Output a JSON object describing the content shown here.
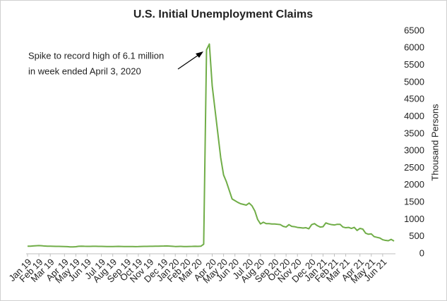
{
  "chart_data": {
    "type": "line",
    "title": "U.S. Initial Unemployment Claims",
    "y_axis_label": "Thousand Persons",
    "annotation": [
      "Spike to record high of 6.1 million",
      "in week ended April 3, 2020"
    ],
    "categories": [
      "Jan 19",
      null,
      null,
      null,
      "Feb 19",
      null,
      null,
      null,
      "Mar 19",
      null,
      null,
      null,
      null,
      "Apr 19",
      null,
      null,
      null,
      "May 19",
      null,
      null,
      null,
      "Jun 19",
      null,
      null,
      null,
      null,
      "Jul 19",
      null,
      null,
      null,
      "Aug 19",
      null,
      null,
      null,
      null,
      "Sep 19",
      null,
      null,
      null,
      "Oct 19",
      null,
      null,
      null,
      "Nov 19",
      null,
      null,
      null,
      null,
      "Dec 19",
      null,
      null,
      null,
      "Jan 20",
      null,
      null,
      null,
      "Feb 20",
      null,
      null,
      null,
      "Mar 20",
      null,
      null,
      null,
      null,
      "Apr 20",
      null,
      null,
      null,
      "May 20",
      null,
      null,
      null,
      "Jun 20",
      null,
      null,
      null,
      null,
      "Jul 20",
      null,
      null,
      null,
      "Aug 20",
      null,
      null,
      null,
      null,
      "Sep 20",
      null,
      null,
      null,
      "Oct 20",
      null,
      null,
      null,
      "Nov 20",
      null,
      null,
      null,
      null,
      "Dec 20",
      null,
      null,
      null,
      "Jan 21",
      null,
      null,
      null,
      "Feb 21",
      null,
      null,
      null,
      "Mar 21",
      null,
      null,
      null,
      null,
      "Apr 21",
      null,
      null,
      null,
      "May 21",
      null,
      null,
      null,
      "Jun 21",
      null,
      null,
      null,
      null
    ],
    "series": [
      {
        "color": "#70ad47",
        "values": [
          220,
          222,
          228,
          235,
          240,
          235,
          225,
          222,
          220,
          218,
          215,
          215,
          214,
          212,
          208,
          200,
          200,
          205,
          218,
          222,
          218,
          216,
          216,
          218,
          218,
          217,
          216,
          214,
          212,
          210,
          212,
          214,
          215,
          214,
          212,
          212,
          212,
          210,
          208,
          210,
          214,
          215,
          216,
          218,
          218,
          220,
          222,
          224,
          226,
          230,
          224,
          218,
          212,
          214,
          216,
          212,
          210,
          214,
          215,
          218,
          216,
          220,
          280,
          5950,
          6120,
          4900,
          4200,
          3500,
          2800,
          2300,
          2100,
          1850,
          1600,
          1550,
          1500,
          1460,
          1440,
          1420,
          1480,
          1400,
          1250,
          1000,
          870,
          920,
          880,
          880,
          870,
          870,
          860,
          850,
          800,
          780,
          850,
          800,
          790,
          770,
          760,
          750,
          760,
          730,
          850,
          880,
          820,
          780,
          790,
          900,
          870,
          850,
          840,
          860,
          860,
          780,
          760,
          770,
          740,
          770,
          680,
          740,
          720,
          600,
          570,
          580,
          500,
          480,
          460,
          410,
          390,
          380,
          420,
          370
        ]
      }
    ],
    "ylim": [
      0,
      6500
    ],
    "yticks": [
      0,
      500,
      1000,
      1500,
      2000,
      2500,
      3000,
      3500,
      4000,
      4500,
      5000,
      5500,
      6000,
      6500
    ]
  }
}
